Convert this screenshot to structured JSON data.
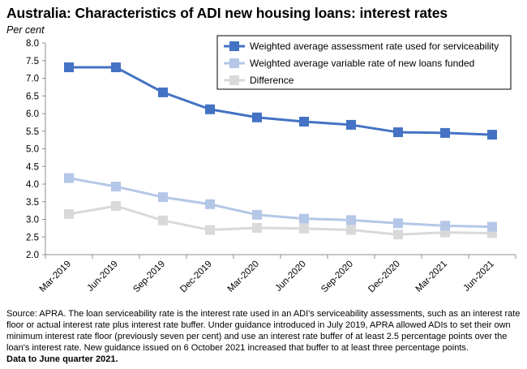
{
  "header": {
    "title": "Australia: Characteristics of ADI new housing loans: interest rates",
    "unit": "Per cent"
  },
  "footer": {
    "source": "Source: APRA. The loan serviceability rate is the interest rate used in an ADI's serviceability assessments, such as an interest rate floor or actual interest rate plus interest rate buffer. Under guidance introduced in July 2019, APRA allowed ADIs to set their own minimum interest rate floor (previously seven per cent) and use an interest rate buffer of at least 2.5 percentage points over the loan's interest rate. New guidance issued on 6 October 2021 increased that buffer to at least three percentage points.",
    "data_note": "Data to June quarter 2021."
  },
  "chart_data": {
    "type": "line",
    "categories": [
      "Mar-2019",
      "Jun-2019",
      "Sep-2019",
      "Dec-2019",
      "Mar-2020",
      "Jun-2020",
      "Sep-2020",
      "Dec-2020",
      "Mar-2021",
      "Jun-2021"
    ],
    "ylim": [
      2.0,
      8.0
    ],
    "yticks": [
      "2.0",
      "2.5",
      "3.0",
      "3.5",
      "4.0",
      "4.5",
      "5.0",
      "5.5",
      "6.0",
      "6.5",
      "7.0",
      "7.5",
      "8.0"
    ],
    "grid": false,
    "legend_position": "top-right",
    "series": [
      {
        "name": "Weighted average assessment rate used for serviceability",
        "color": "#4472c4",
        "values": [
          7.31,
          7.31,
          6.6,
          6.12,
          5.89,
          5.77,
          5.68,
          5.47,
          5.45,
          5.4
        ]
      },
      {
        "name": "Weighted average variable rate of new loans funded",
        "color": "#b4c7e7",
        "values": [
          4.17,
          3.93,
          3.63,
          3.43,
          3.13,
          3.02,
          2.98,
          2.89,
          2.82,
          2.79
        ]
      },
      {
        "name": "Difference",
        "color": "#d9d9d9",
        "values": [
          3.15,
          3.38,
          2.97,
          2.7,
          2.76,
          2.74,
          2.7,
          2.57,
          2.63,
          2.61
        ]
      }
    ]
  }
}
